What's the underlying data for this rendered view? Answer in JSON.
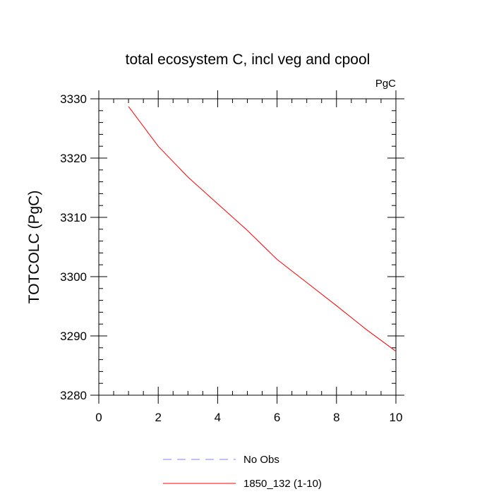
{
  "chart_data": {
    "type": "line",
    "title": "total ecosystem C, incl veg and cpool",
    "units_label": "PgC",
    "ylabel": "TOTCOLC  (PgC)",
    "xlabel": "",
    "xlim": [
      0,
      10
    ],
    "ylim": [
      3280,
      3330
    ],
    "x_ticks": [
      0,
      2,
      4,
      6,
      8,
      10
    ],
    "x_tick_labels": [
      "0",
      "2",
      "4",
      "6",
      "8",
      "10"
    ],
    "y_ticks": [
      3280,
      3290,
      3300,
      3310,
      3320,
      3330
    ],
    "y_tick_labels": [
      "3280",
      "3290",
      "3300",
      "3310",
      "3320",
      "3330"
    ],
    "grid": false,
    "legend_position": "bottom",
    "legend": [
      {
        "label": "No Obs",
        "color": "#8080ff",
        "style": "dashed"
      },
      {
        "label": "1850_132 (1-10)",
        "color": "#ff0000",
        "style": "solid"
      }
    ],
    "series": [
      {
        "name": "1850_132 (1-10)",
        "color": "#ff0000",
        "x": [
          1,
          2,
          3,
          4,
          5,
          6,
          7,
          8,
          9,
          10
        ],
        "values": [
          3328.7,
          3322.0,
          3316.8,
          3312.3,
          3307.8,
          3302.9,
          3299.0,
          3295.1,
          3291.1,
          3287.4
        ]
      }
    ]
  }
}
